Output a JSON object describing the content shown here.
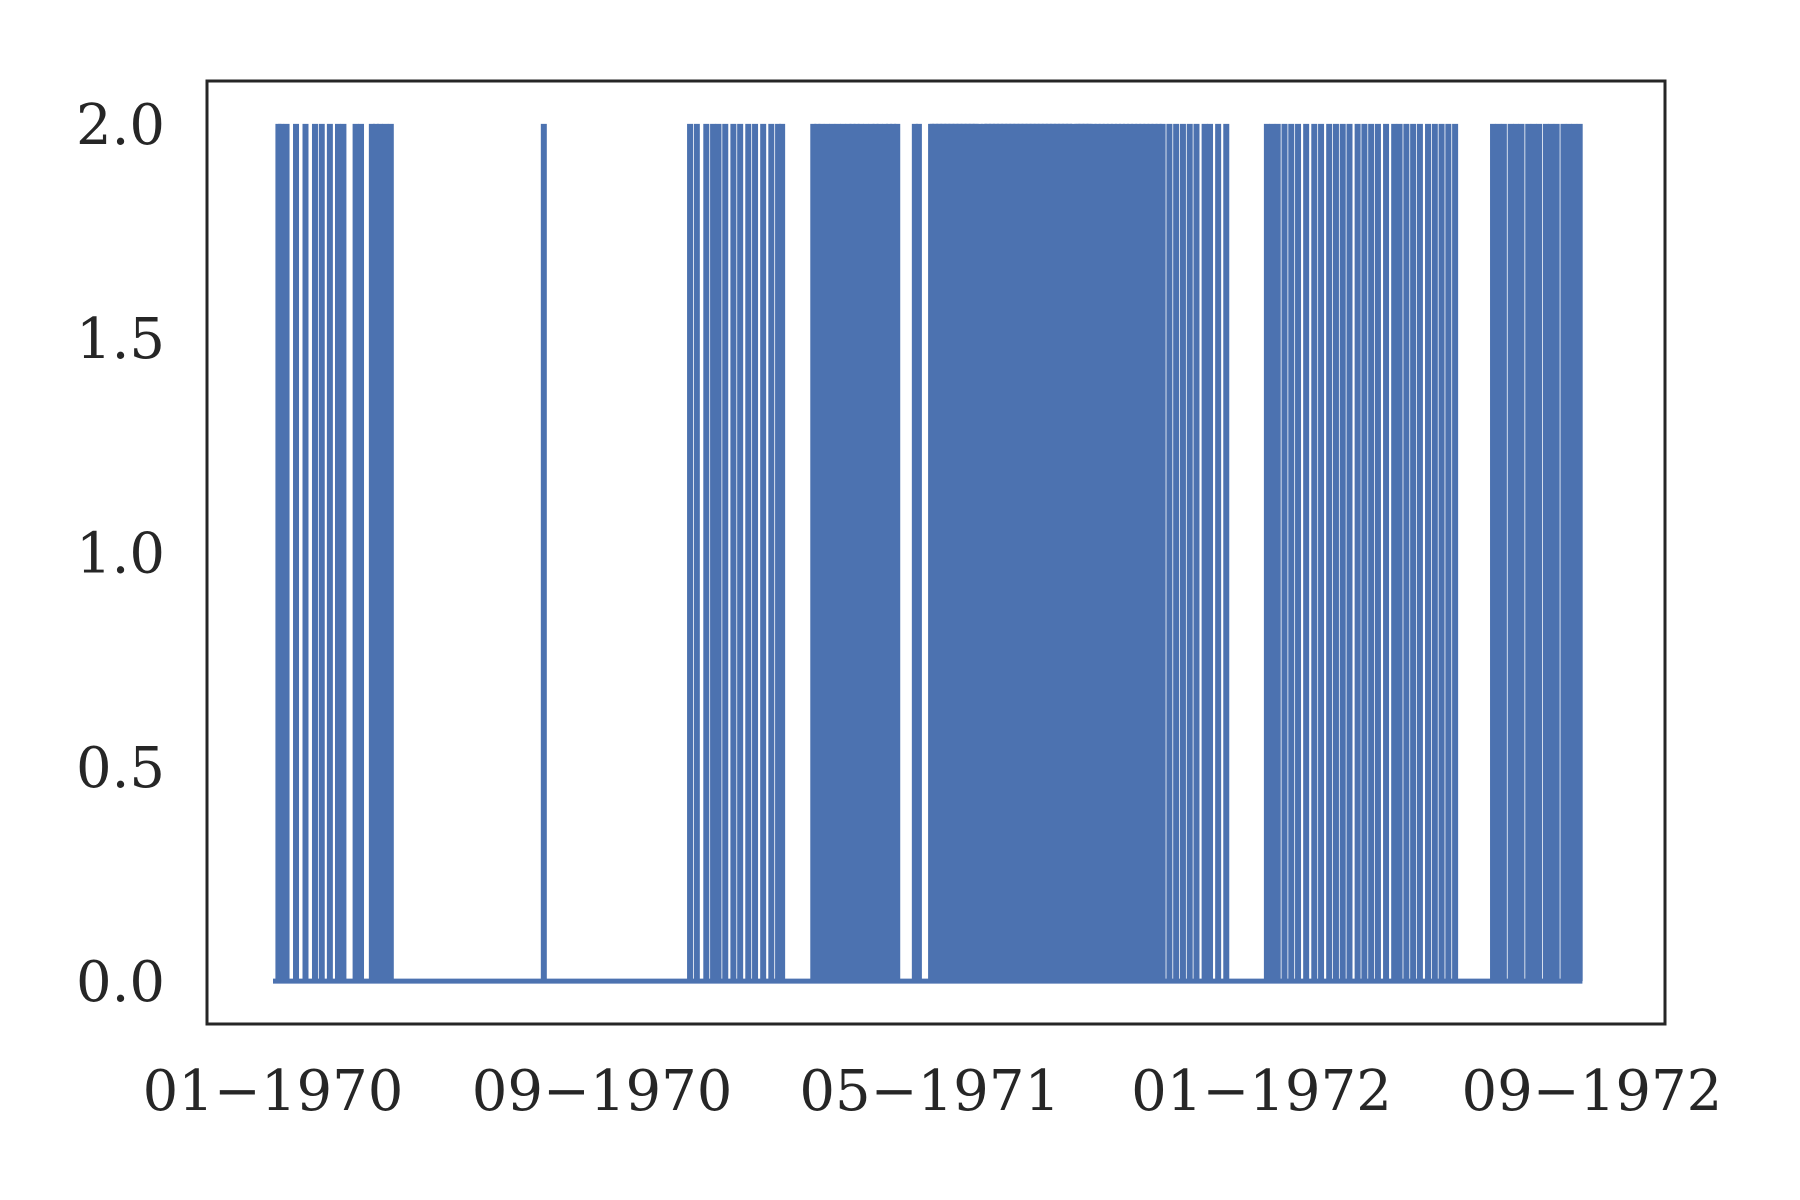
{
  "chart_data": {
    "type": "line",
    "title": "",
    "xlabel": "",
    "ylabel": "",
    "x_range": [
      "1970-01-01",
      "1972-10-25"
    ],
    "ylim": [
      -0.1,
      2.1
    ],
    "grid": false,
    "line_color": "#4c72b0",
    "frame_color": "#262626",
    "x_ticks": [
      {
        "date": "1970-01-01",
        "label": "01−1970"
      },
      {
        "date": "1970-09-01",
        "label": "09−1970"
      },
      {
        "date": "1971-05-01",
        "label": "05−1971"
      },
      {
        "date": "1972-01-01",
        "label": "01−1972"
      },
      {
        "date": "1972-09-01",
        "label": "09−1972"
      }
    ],
    "y_ticks": [
      {
        "value": 0.0,
        "label": "0.0"
      },
      {
        "value": 0.5,
        "label": "0.5"
      },
      {
        "value": 1.0,
        "label": "1.0"
      },
      {
        "value": 1.5,
        "label": "1.5"
      },
      {
        "value": 2.0,
        "label": "2.0"
      }
    ],
    "series": [
      {
        "values_note": "",
        "start": "1970-01-01",
        "end": "1972-08-25",
        "baseline": 0,
        "peak": 2,
        "spike_dates": [
          "1970-01-05",
          "1970-01-07",
          "1970-01-11",
          "1970-01-18",
          "1970-01-25",
          "1970-02-01",
          "1970-02-06",
          "1970-02-12",
          "1970-02-18",
          "1970-02-22",
          "1970-03-03",
          "1970-03-07",
          "1970-03-15",
          "1970-03-18",
          "1970-03-21",
          "1970-03-25",
          "1970-03-29",
          "1970-07-20",
          "1970-11-05",
          "1970-11-10",
          "1970-11-17",
          "1970-11-22",
          "1970-11-26",
          "1970-12-01",
          "1970-12-07",
          "1970-12-12",
          "1970-12-18",
          "1970-12-23",
          "1970-12-29",
          "1971-01-04",
          "1971-01-09",
          "1971-01-12",
          "1971-02-04",
          "1971-02-07",
          "1971-02-10",
          "1971-02-14",
          "1971-02-18",
          "1971-02-22",
          "1971-02-26",
          "1971-03-02",
          "1971-03-05",
          "1971-03-08",
          "1971-03-11",
          "1971-03-15",
          "1971-03-19",
          "1971-03-22",
          "1971-03-25",
          "1971-03-29",
          "1971-04-01",
          "1971-04-04",
          "1971-04-07",
          "1971-04-20",
          "1971-04-23",
          "1971-05-02",
          "1971-05-05",
          "1971-05-08",
          "1971-05-11",
          "1971-05-14",
          "1971-05-17",
          "1971-05-20",
          "1971-05-23",
          "1971-05-26",
          "1971-05-29",
          "1971-06-01",
          "1971-06-04",
          "1971-06-07",
          "1971-06-10",
          "1971-06-13",
          "1971-06-16",
          "1971-06-19",
          "1971-06-22",
          "1971-06-25",
          "1971-06-28",
          "1971-07-01",
          "1971-07-04",
          "1971-07-07",
          "1971-07-10",
          "1971-07-13",
          "1971-07-16",
          "1971-07-19",
          "1971-07-22",
          "1971-07-25",
          "1971-07-28",
          "1971-07-31",
          "1971-08-03",
          "1971-08-06",
          "1971-08-09",
          "1971-08-12",
          "1971-08-15",
          "1971-08-18",
          "1971-08-21",
          "1971-08-24",
          "1971-08-27",
          "1971-08-30",
          "1971-09-02",
          "1971-09-05",
          "1971-09-08",
          "1971-09-11",
          "1971-09-14",
          "1971-09-17",
          "1971-09-20",
          "1971-09-23",
          "1971-09-26",
          "1971-09-29",
          "1971-10-02",
          "1971-10-05",
          "1971-10-08",
          "1971-10-11",
          "1971-10-14",
          "1971-10-17",
          "1971-10-20",
          "1971-10-25",
          "1971-10-30",
          "1971-11-04",
          "1971-11-09",
          "1971-11-14",
          "1971-11-20",
          "1971-11-24",
          "1971-11-30",
          "1971-12-06",
          "1972-01-05",
          "1972-01-09",
          "1972-01-13",
          "1972-01-18",
          "1972-01-23",
          "1972-01-28",
          "1972-02-03",
          "1972-02-09",
          "1972-02-14",
          "1972-02-20",
          "1972-02-25",
          "1972-03-01",
          "1972-03-06",
          "1972-03-12",
          "1972-03-17",
          "1972-03-22",
          "1972-03-27",
          "1972-04-02",
          "1972-04-08",
          "1972-04-12",
          "1972-04-17",
          "1972-04-22",
          "1972-04-27",
          "1972-05-03",
          "1972-05-08",
          "1972-05-13",
          "1972-05-18",
          "1972-05-23",
          "1972-06-20",
          "1972-06-24",
          "1972-06-28",
          "1972-07-03",
          "1972-07-07",
          "1972-07-11",
          "1972-07-16",
          "1972-07-20",
          "1972-07-24",
          "1972-07-29",
          "1972-08-02",
          "1972-08-06",
          "1972-08-11",
          "1972-08-15",
          "1972-08-19",
          "1972-08-23"
        ],
        "filled_blocks": [
          [
            "1971-05-01",
            "1971-06-05"
          ],
          [
            "1971-06-10",
            "1971-08-14"
          ],
          [
            "1971-08-17",
            "1971-08-28"
          ]
        ]
      }
    ]
  }
}
